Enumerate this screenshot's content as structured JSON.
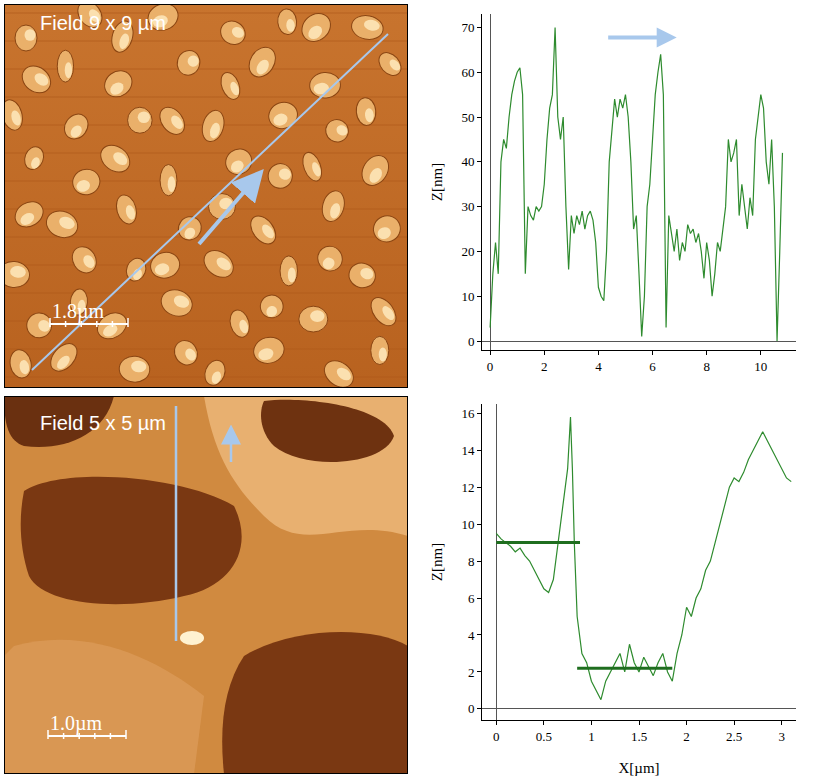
{
  "images": [
    {
      "label": "Field 9 x 9 µm",
      "scale_bar": "1.8µm"
    },
    {
      "label": "Field 5 x 5 µm",
      "scale_bar": "1.0µm"
    }
  ],
  "chart_data": [
    {
      "type": "line",
      "y_label": "Z[nm]",
      "color": "#2e8b2e",
      "grid": false,
      "x": [
        0,
        0.1,
        0.2,
        0.3,
        0.4,
        0.5,
        0.6,
        0.7,
        0.8,
        0.9,
        1.0,
        1.1,
        1.2,
        1.3,
        1.4,
        1.5,
        1.6,
        1.7,
        1.8,
        1.9,
        2.0,
        2.1,
        2.2,
        2.3,
        2.4,
        2.5,
        2.6,
        2.7,
        2.8,
        2.9,
        3.0,
        3.1,
        3.2,
        3.3,
        3.4,
        3.5,
        3.6,
        3.7,
        3.8,
        3.9,
        4.0,
        4.1,
        4.2,
        4.3,
        4.4,
        4.5,
        4.6,
        4.7,
        4.8,
        4.9,
        5.0,
        5.1,
        5.2,
        5.3,
        5.4,
        5.5,
        5.6,
        5.7,
        5.8,
        5.9,
        6.0,
        6.1,
        6.2,
        6.3,
        6.4,
        6.5,
        6.6,
        6.7,
        6.8,
        6.9,
        7.0,
        7.1,
        7.2,
        7.3,
        7.4,
        7.5,
        7.6,
        7.7,
        7.8,
        7.9,
        8.0,
        8.1,
        8.2,
        8.3,
        8.4,
        8.5,
        8.6,
        8.7,
        8.8,
        8.9,
        9.0,
        9.1,
        9.2,
        9.3,
        9.4,
        9.5,
        9.6,
        9.7,
        9.8,
        9.9,
        10.0,
        10.1,
        10.2,
        10.3,
        10.4,
        10.5,
        10.6,
        10.7,
        10.8
      ],
      "values": [
        3,
        15,
        22,
        15,
        40,
        45,
        43,
        50,
        55,
        58,
        60,
        61,
        55,
        15,
        30,
        28,
        27,
        30,
        29,
        30,
        35,
        45,
        52,
        55,
        70,
        50,
        45,
        50,
        30,
        16,
        28,
        24,
        28,
        26,
        29,
        25,
        28,
        29,
        27,
        22,
        12,
        10,
        9,
        20,
        40,
        48,
        54,
        50,
        54,
        52,
        55,
        50,
        40,
        25,
        28,
        15,
        1,
        10,
        30,
        35,
        45,
        55,
        60,
        64,
        55,
        3,
        28,
        24,
        20,
        25,
        18,
        22,
        20,
        26,
        24,
        25,
        22,
        24,
        20,
        14,
        22,
        18,
        10,
        15,
        22,
        20,
        25,
        30,
        45,
        40,
        42,
        45,
        28,
        35,
        30,
        25,
        32,
        28,
        45,
        50,
        55,
        52,
        40,
        35,
        45,
        30,
        0,
        20,
        42
      ],
      "xlim": [
        -0.3,
        11.3
      ],
      "xticks": [
        0,
        2,
        4,
        6,
        8,
        10
      ],
      "ylim": [
        -2,
        73
      ],
      "yticks": [
        0,
        10,
        20,
        30,
        40,
        50,
        60,
        70
      ]
    },
    {
      "type": "line",
      "x_label": "X[µm]",
      "y_label": "Z[nm]",
      "color": "#2e8b2e",
      "grid": false,
      "x": [
        0,
        0.05,
        0.1,
        0.15,
        0.2,
        0.25,
        0.3,
        0.35,
        0.4,
        0.45,
        0.5,
        0.55,
        0.6,
        0.65,
        0.7,
        0.75,
        0.78,
        0.8,
        0.82,
        0.85,
        0.9,
        0.95,
        1.0,
        1.05,
        1.1,
        1.15,
        1.2,
        1.25,
        1.3,
        1.35,
        1.4,
        1.45,
        1.5,
        1.55,
        1.6,
        1.65,
        1.7,
        1.75,
        1.8,
        1.85,
        1.9,
        1.95,
        2.0,
        2.05,
        2.1,
        2.15,
        2.2,
        2.25,
        2.3,
        2.35,
        2.4,
        2.45,
        2.5,
        2.55,
        2.6,
        2.65,
        2.7,
        2.75,
        2.8,
        2.85,
        2.9,
        2.95,
        3.0,
        3.05,
        3.1
      ],
      "values": [
        9.5,
        9.2,
        9,
        8.8,
        8.5,
        8.7,
        8.3,
        8,
        7.5,
        7,
        6.5,
        6.3,
        7,
        9,
        11,
        13,
        15.8,
        13,
        9,
        5,
        3,
        2.5,
        1.5,
        1,
        0.5,
        1.5,
        2,
        2.5,
        3,
        2,
        3.5,
        2.5,
        2,
        2.8,
        2.3,
        1.8,
        2.5,
        3,
        2,
        1.5,
        3,
        4,
        5.5,
        5,
        6,
        6.5,
        7.5,
        8,
        9,
        10,
        11,
        12,
        12.5,
        12.3,
        12.8,
        13.5,
        14,
        14.5,
        15,
        14.5,
        14,
        13.5,
        13,
        12.5,
        12.3
      ],
      "reference_lines": [
        {
          "y": 9,
          "x": [
            0,
            0.88
          ]
        },
        {
          "y": 2.2,
          "x": [
            0.85,
            1.85
          ]
        }
      ],
      "xlim": [
        -0.15,
        3.15
      ],
      "xticks": [
        0,
        0.5,
        1,
        1.5,
        2,
        2.5,
        3
      ],
      "ylim": [
        -0.6,
        16.5
      ],
      "yticks": [
        0,
        2,
        4,
        6,
        8,
        10,
        12,
        14,
        16
      ]
    }
  ]
}
